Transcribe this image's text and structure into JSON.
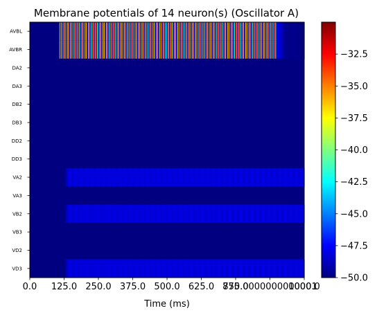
{
  "chart_data": {
    "type": "heatmap",
    "title": "Membrane potentials of 14 neuron(s) (Oscillator A)",
    "xlabel": "Time (ms)",
    "ylabel": "",
    "xlim": [
      0,
      1000
    ],
    "x_tick_labels": [
      "0.0",
      "125.0",
      "250.0",
      "375.0",
      "500.0",
      "625.0",
      "750.0",
      "875.0000000000001",
      "1000.0"
    ],
    "rows": [
      "AVBL",
      "AVBR",
      "DA2",
      "DA3",
      "DB2",
      "DB3",
      "DD2",
      "DD3",
      "VA2",
      "VA3",
      "VB2",
      "VB3",
      "VD2",
      "VD3"
    ],
    "colormap": "jet",
    "colorbar": {
      "range": [
        -50.0,
        -30.0
      ],
      "ticks": [
        -32.5,
        -35.0,
        -37.5,
        -40.0,
        -42.5,
        -45.0,
        -47.5,
        -50.0
      ],
      "tick_labels": [
        "−32.5",
        "−35.0",
        "−37.5",
        "−40.0",
        "−42.5",
        "−45.0",
        "−47.5",
        "−50.0"
      ]
    },
    "series": [
      {
        "name": "AVBL",
        "baseline": -50,
        "active_start_ms": 105,
        "active_end_ms": 900,
        "oscillation_period_ms": 13,
        "min": -50,
        "max": -30,
        "decay_end_ms": 1000
      },
      {
        "name": "AVBR",
        "baseline": -50,
        "active_start_ms": 105,
        "active_end_ms": 900,
        "oscillation_period_ms": 13,
        "min": -50,
        "max": -30,
        "decay_end_ms": 1000
      },
      {
        "name": "DA2",
        "baseline": -50
      },
      {
        "name": "DA3",
        "baseline": -50
      },
      {
        "name": "DB2",
        "baseline": -50
      },
      {
        "name": "DB3",
        "baseline": -50
      },
      {
        "name": "DD2",
        "baseline": -50
      },
      {
        "name": "DD3",
        "baseline": -50
      },
      {
        "name": "VA2",
        "baseline": -50,
        "active_start_ms": 125,
        "active_level": -48.2
      },
      {
        "name": "VA3",
        "baseline": -50
      },
      {
        "name": "VB2",
        "baseline": -50,
        "active_start_ms": 125,
        "active_level": -48.2
      },
      {
        "name": "VB3",
        "baseline": -50
      },
      {
        "name": "VD2",
        "baseline": -50
      },
      {
        "name": "VD3",
        "baseline": -50,
        "active_start_ms": 125,
        "active_level": -48.2
      }
    ]
  }
}
